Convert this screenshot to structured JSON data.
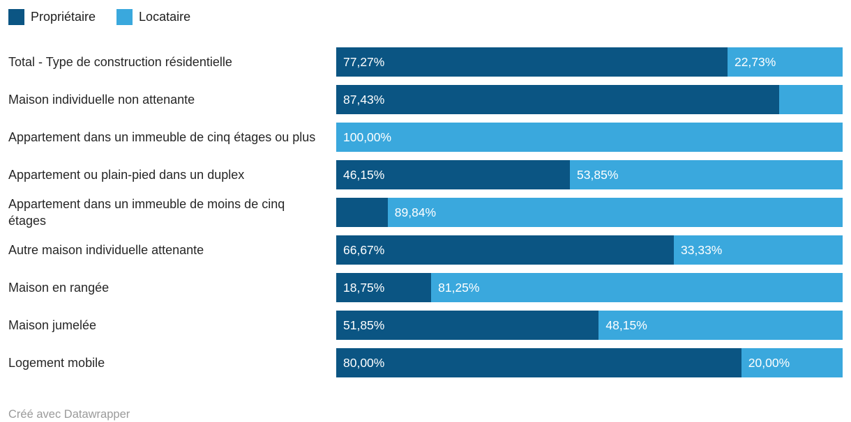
{
  "colors": {
    "owner": "#0B5583",
    "renter": "#3AA8DD",
    "value_text": "#FFFFFF",
    "category_text": "#262626",
    "credit_text": "#9A9A9A",
    "background": "#FFFFFF"
  },
  "legend": {
    "items": [
      {
        "label": "Propriétaire",
        "color": "#0B5583"
      },
      {
        "label": "Locataire",
        "color": "#3AA8DD"
      }
    ]
  },
  "chart_data": {
    "type": "bar",
    "stacked": true,
    "orientation": "horizontal",
    "unit": "%",
    "xlim": [
      0,
      100
    ],
    "grid": false,
    "legend_position": "top-left",
    "categories": [
      "Total - Type de construction résidentielle",
      "Maison individuelle non attenante",
      "Appartement dans un immeuble de cinq étages ou plus",
      "Appartement ou plain-pied dans un duplex",
      "Appartement dans un immeuble de moins de cinq étages",
      "Autre maison individuelle attenante",
      "Maison en rangée",
      "Maison jumelée",
      "Logement mobile"
    ],
    "series": [
      {
        "name": "Propriétaire",
        "values": [
          77.27,
          87.43,
          0,
          46.15,
          10.16,
          66.67,
          18.75,
          51.85,
          80.0
        ]
      },
      {
        "name": "Locataire",
        "values": [
          22.73,
          12.57,
          100.0,
          53.85,
          89.84,
          33.33,
          81.25,
          48.15,
          20.0
        ]
      }
    ],
    "bar_labels": [
      [
        "77,27%",
        "22,73%"
      ],
      [
        "87,43%",
        ""
      ],
      [
        "",
        "100,00%"
      ],
      [
        "46,15%",
        "53,85%"
      ],
      [
        "",
        "89,84%"
      ],
      [
        "66,67%",
        "33,33%"
      ],
      [
        "18,75%",
        "81,25%"
      ],
      [
        "51,85%",
        "48,15%"
      ],
      [
        "80,00%",
        "20,00%"
      ]
    ]
  },
  "footer": {
    "credit": "Créé avec Datawrapper"
  }
}
